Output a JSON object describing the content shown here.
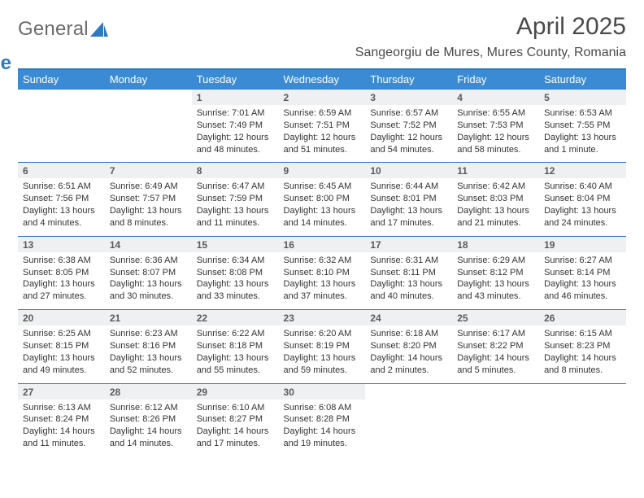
{
  "brand": {
    "word1": "General",
    "word2": "Blue"
  },
  "colors": {
    "accent": "#3b8bd4",
    "border": "#2f78c2",
    "daynum_bg": "#eef0f2",
    "text_muted": "#5a5a5a"
  },
  "title": "April 2025",
  "location": "Sangeorgiu de Mures, Mures County, Romania",
  "weekday_headers": [
    "Sunday",
    "Monday",
    "Tuesday",
    "Wednesday",
    "Thursday",
    "Friday",
    "Saturday"
  ],
  "weeks": [
    {
      "nums": [
        "",
        "",
        "1",
        "2",
        "3",
        "4",
        "5"
      ],
      "cells": [
        null,
        null,
        {
          "sunrise": "Sunrise: 7:01 AM",
          "sunset": "Sunset: 7:49 PM",
          "day1": "Daylight: 12 hours",
          "day2": "and 48 minutes."
        },
        {
          "sunrise": "Sunrise: 6:59 AM",
          "sunset": "Sunset: 7:51 PM",
          "day1": "Daylight: 12 hours",
          "day2": "and 51 minutes."
        },
        {
          "sunrise": "Sunrise: 6:57 AM",
          "sunset": "Sunset: 7:52 PM",
          "day1": "Daylight: 12 hours",
          "day2": "and 54 minutes."
        },
        {
          "sunrise": "Sunrise: 6:55 AM",
          "sunset": "Sunset: 7:53 PM",
          "day1": "Daylight: 12 hours",
          "day2": "and 58 minutes."
        },
        {
          "sunrise": "Sunrise: 6:53 AM",
          "sunset": "Sunset: 7:55 PM",
          "day1": "Daylight: 13 hours",
          "day2": "and 1 minute."
        }
      ]
    },
    {
      "nums": [
        "6",
        "7",
        "8",
        "9",
        "10",
        "11",
        "12"
      ],
      "cells": [
        {
          "sunrise": "Sunrise: 6:51 AM",
          "sunset": "Sunset: 7:56 PM",
          "day1": "Daylight: 13 hours",
          "day2": "and 4 minutes."
        },
        {
          "sunrise": "Sunrise: 6:49 AM",
          "sunset": "Sunset: 7:57 PM",
          "day1": "Daylight: 13 hours",
          "day2": "and 8 minutes."
        },
        {
          "sunrise": "Sunrise: 6:47 AM",
          "sunset": "Sunset: 7:59 PM",
          "day1": "Daylight: 13 hours",
          "day2": "and 11 minutes."
        },
        {
          "sunrise": "Sunrise: 6:45 AM",
          "sunset": "Sunset: 8:00 PM",
          "day1": "Daylight: 13 hours",
          "day2": "and 14 minutes."
        },
        {
          "sunrise": "Sunrise: 6:44 AM",
          "sunset": "Sunset: 8:01 PM",
          "day1": "Daylight: 13 hours",
          "day2": "and 17 minutes."
        },
        {
          "sunrise": "Sunrise: 6:42 AM",
          "sunset": "Sunset: 8:03 PM",
          "day1": "Daylight: 13 hours",
          "day2": "and 21 minutes."
        },
        {
          "sunrise": "Sunrise: 6:40 AM",
          "sunset": "Sunset: 8:04 PM",
          "day1": "Daylight: 13 hours",
          "day2": "and 24 minutes."
        }
      ]
    },
    {
      "nums": [
        "13",
        "14",
        "15",
        "16",
        "17",
        "18",
        "19"
      ],
      "cells": [
        {
          "sunrise": "Sunrise: 6:38 AM",
          "sunset": "Sunset: 8:05 PM",
          "day1": "Daylight: 13 hours",
          "day2": "and 27 minutes."
        },
        {
          "sunrise": "Sunrise: 6:36 AM",
          "sunset": "Sunset: 8:07 PM",
          "day1": "Daylight: 13 hours",
          "day2": "and 30 minutes."
        },
        {
          "sunrise": "Sunrise: 6:34 AM",
          "sunset": "Sunset: 8:08 PM",
          "day1": "Daylight: 13 hours",
          "day2": "and 33 minutes."
        },
        {
          "sunrise": "Sunrise: 6:32 AM",
          "sunset": "Sunset: 8:10 PM",
          "day1": "Daylight: 13 hours",
          "day2": "and 37 minutes."
        },
        {
          "sunrise": "Sunrise: 6:31 AM",
          "sunset": "Sunset: 8:11 PM",
          "day1": "Daylight: 13 hours",
          "day2": "and 40 minutes."
        },
        {
          "sunrise": "Sunrise: 6:29 AM",
          "sunset": "Sunset: 8:12 PM",
          "day1": "Daylight: 13 hours",
          "day2": "and 43 minutes."
        },
        {
          "sunrise": "Sunrise: 6:27 AM",
          "sunset": "Sunset: 8:14 PM",
          "day1": "Daylight: 13 hours",
          "day2": "and 46 minutes."
        }
      ]
    },
    {
      "nums": [
        "20",
        "21",
        "22",
        "23",
        "24",
        "25",
        "26"
      ],
      "cells": [
        {
          "sunrise": "Sunrise: 6:25 AM",
          "sunset": "Sunset: 8:15 PM",
          "day1": "Daylight: 13 hours",
          "day2": "and 49 minutes."
        },
        {
          "sunrise": "Sunrise: 6:23 AM",
          "sunset": "Sunset: 8:16 PM",
          "day1": "Daylight: 13 hours",
          "day2": "and 52 minutes."
        },
        {
          "sunrise": "Sunrise: 6:22 AM",
          "sunset": "Sunset: 8:18 PM",
          "day1": "Daylight: 13 hours",
          "day2": "and 55 minutes."
        },
        {
          "sunrise": "Sunrise: 6:20 AM",
          "sunset": "Sunset: 8:19 PM",
          "day1": "Daylight: 13 hours",
          "day2": "and 59 minutes."
        },
        {
          "sunrise": "Sunrise: 6:18 AM",
          "sunset": "Sunset: 8:20 PM",
          "day1": "Daylight: 14 hours",
          "day2": "and 2 minutes."
        },
        {
          "sunrise": "Sunrise: 6:17 AM",
          "sunset": "Sunset: 8:22 PM",
          "day1": "Daylight: 14 hours",
          "day2": "and 5 minutes."
        },
        {
          "sunrise": "Sunrise: 6:15 AM",
          "sunset": "Sunset: 8:23 PM",
          "day1": "Daylight: 14 hours",
          "day2": "and 8 minutes."
        }
      ]
    },
    {
      "nums": [
        "27",
        "28",
        "29",
        "30",
        "",
        "",
        ""
      ],
      "cells": [
        {
          "sunrise": "Sunrise: 6:13 AM",
          "sunset": "Sunset: 8:24 PM",
          "day1": "Daylight: 14 hours",
          "day2": "and 11 minutes."
        },
        {
          "sunrise": "Sunrise: 6:12 AM",
          "sunset": "Sunset: 8:26 PM",
          "day1": "Daylight: 14 hours",
          "day2": "and 14 minutes."
        },
        {
          "sunrise": "Sunrise: 6:10 AM",
          "sunset": "Sunset: 8:27 PM",
          "day1": "Daylight: 14 hours",
          "day2": "and 17 minutes."
        },
        {
          "sunrise": "Sunrise: 6:08 AM",
          "sunset": "Sunset: 8:28 PM",
          "day1": "Daylight: 14 hours",
          "day2": "and 19 minutes."
        },
        null,
        null,
        null
      ]
    }
  ]
}
